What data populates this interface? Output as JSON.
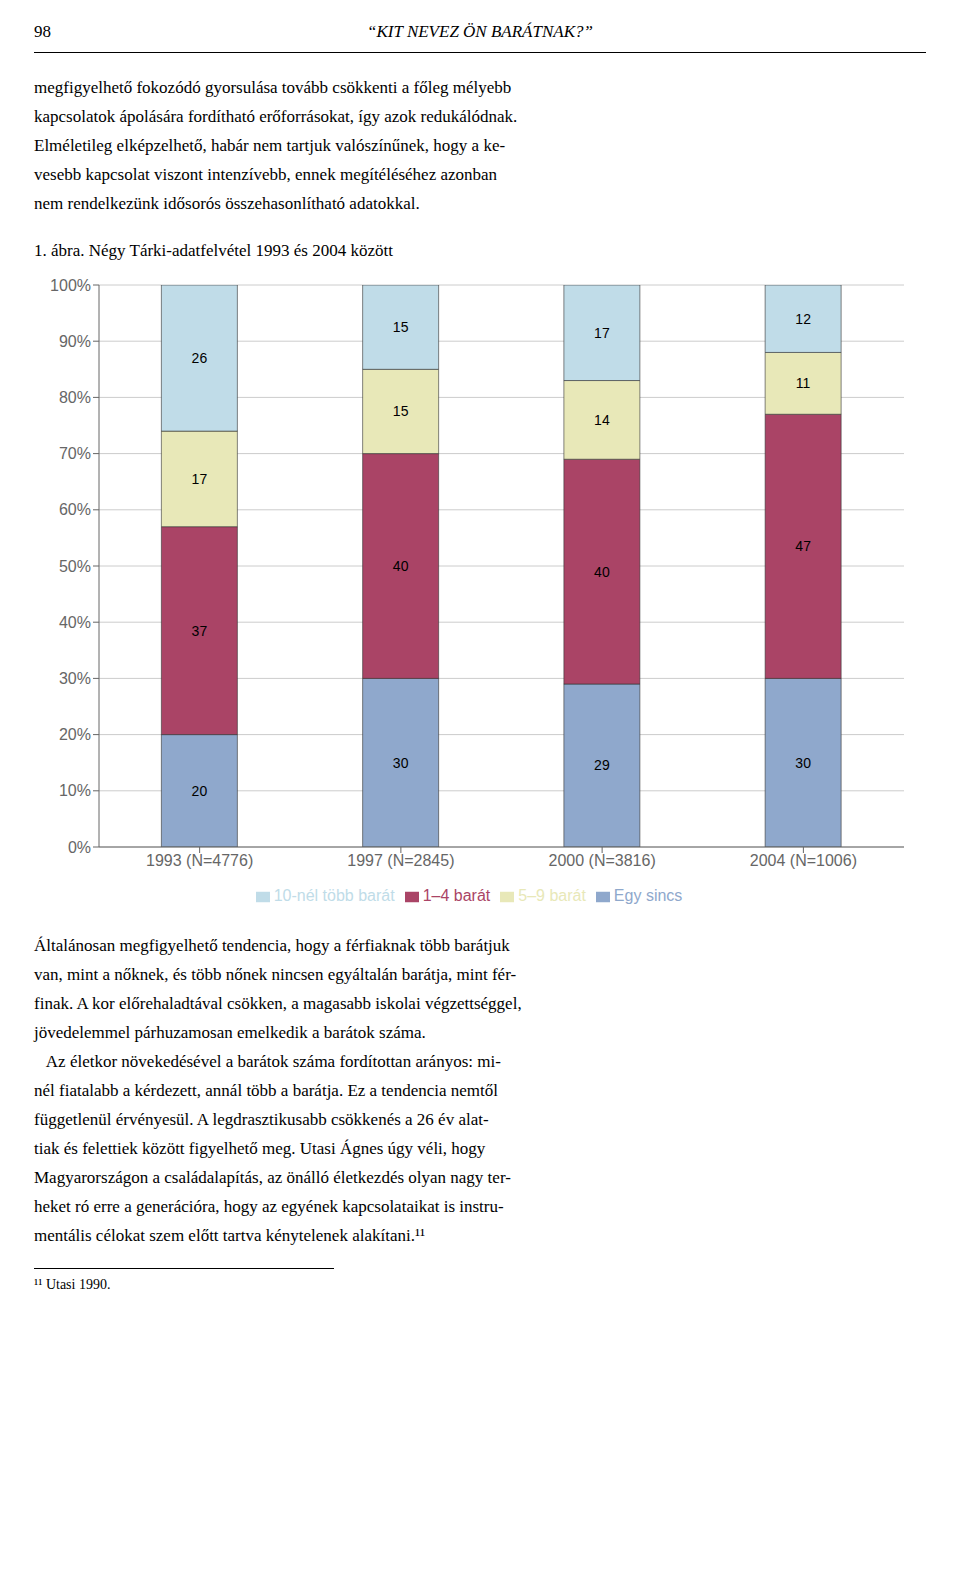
{
  "chart_data": {
    "type": "bar",
    "title": "1. ábra. Négy Tárki-adatfelvétel 1993 és 2004 között",
    "annotations": [
      [
        "98",
        "“KIT NEVEZ ÖN BARÁTNAK?”"
      ],
      [
        "megfigyelhető fokozódó gyorsulása tovább csökkenti a főleg mélyebb",
        "kapcsolatok ápolására fordítható erőforrásokat, így azok redukálódnak.",
        "Elméletileg elképzelhető, habár nem tartjuk valószínűnek, hogy a ke-",
        "vesebb kapcsolat viszont intenzívebb, ennek megítéléséhez azonban",
        "nem rendelkezünk idősorós összehasonlítható adatokkal."
      ],
      [
        "Általánosan megfigyelhető tendencia, hogy a férfiaknak több barátjuk",
        "van, mint a nőknek, és több nőnek nincsen egyáltalán barátja, mint fér-",
        "finak. A kor előrehaladtával csökken, a magasabb iskolai végzettséggel,",
        "jövedelemmel párhuzamosan emelkedik a barátok száma.",
        "   Az életkor növekedésével a barátok száma fordítottan arányos: mi-",
        "nél fiatalabb a kérdezett, annál több a barátja. Ez a tendencia nemtől",
        "függetlenül érvényesül. A legdrasztikusabb csökkenés a 26 év alat-",
        "tiak és felettiek között figyelhető meg. Utasi Ágnes úgy véli, hogy",
        "Magyarországon a családalapítás, az önálló életkezdés olyan nagy ter-",
        "heket ró erre a generációra, hogy az egyének kapcsolataikat is instru-",
        "mentális célokat szem előtt tartva kénytelenek alakítani.¹¹"
      ],
      [
        "¹¹ Utasi 1990."
      ]
    ],
    "categories": [
      "1993 (N=4776)",
      "1997 (N=2845)",
      "2000 (N=3816)",
      "2004 (N=1006)"
    ],
    "series": [
      {
        "name": "Egy sincs",
        "color": "#8fa8cc",
        "values": [
          20,
          30,
          29,
          30
        ]
      },
      {
        "name": "1–4 barát",
        "color": "#aa4466",
        "values": [
          37,
          40,
          40,
          47
        ]
      },
      {
        "name": "5–9 barát",
        "color": "#e8e8b8",
        "values": [
          17,
          15,
          14,
          11
        ]
      },
      {
        "name": "10-nél több barát",
        "color": "#c0dce8",
        "values": [
          26,
          15,
          17,
          12
        ]
      }
    ],
    "stacked": true,
    "data_labels": true,
    "ylim": [
      0,
      100
    ],
    "yticks": [
      {
        "value": 0,
        "label": "0%"
      },
      {
        "value": 10,
        "label": "10%"
      },
      {
        "value": 20,
        "label": "20%"
      },
      {
        "value": 30,
        "label": "30%"
      },
      {
        "value": 40,
        "label": "40%"
      },
      {
        "value": 50,
        "label": "50%"
      },
      {
        "value": 60,
        "label": "60%"
      },
      {
        "value": 70,
        "label": "70%"
      },
      {
        "value": 80,
        "label": "80%"
      },
      {
        "value": 90,
        "label": "90%"
      },
      {
        "value": 100,
        "label": "100%"
      }
    ],
    "grid": true,
    "legend": "bottom"
  }
}
